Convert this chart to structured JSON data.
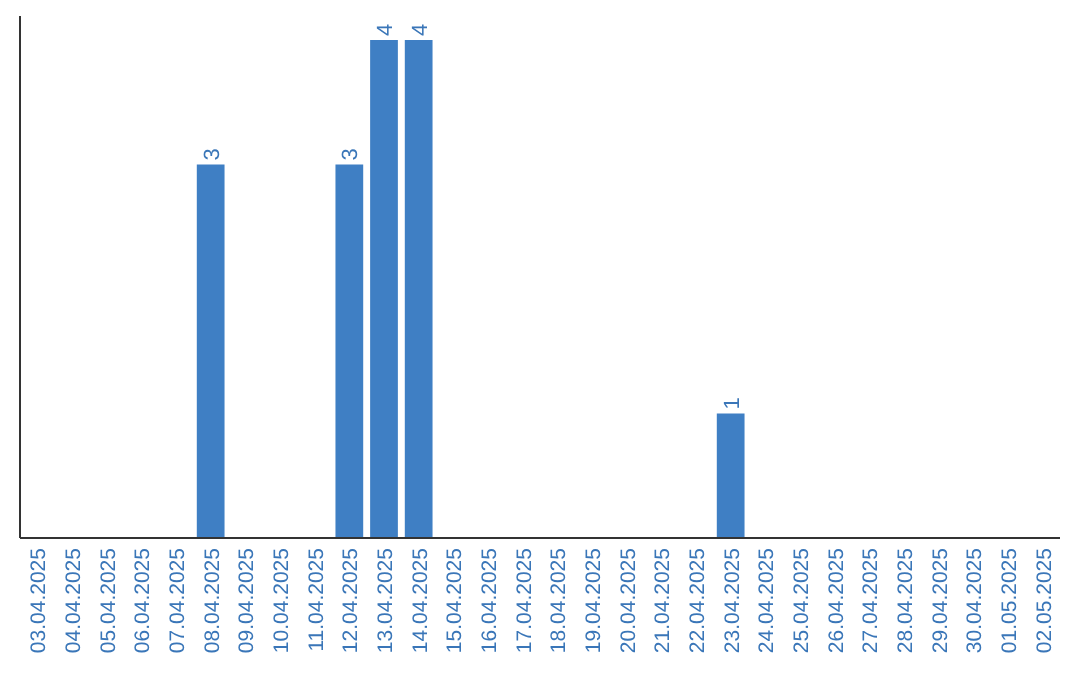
{
  "chart_data": {
    "type": "bar",
    "categories": [
      "03.04.2025",
      "04.04.2025",
      "05.04.2025",
      "06.04.2025",
      "07.04.2025",
      "08.04.2025",
      "09.04.2025",
      "10.04.2025",
      "11.04.2025",
      "12.04.2025",
      "13.04.2025",
      "14.04.2025",
      "15.04.2025",
      "16.04.2025",
      "17.04.2025",
      "18.04.2025",
      "19.04.2025",
      "20.04.2025",
      "21.04.2025",
      "22.04.2025",
      "23.04.2025",
      "24.04.2025",
      "25.04.2025",
      "26.04.2025",
      "27.04.2025",
      "28.04.2025",
      "29.04.2025",
      "30.04.2025",
      "01.05.2025",
      "02.05.2025"
    ],
    "values": [
      0,
      0,
      0,
      0,
      0,
      3,
      0,
      0,
      0,
      3,
      4,
      4,
      0,
      0,
      0,
      0,
      0,
      0,
      0,
      0,
      1,
      0,
      0,
      0,
      0,
      0,
      0,
      0,
      0,
      0
    ],
    "value_labels": [
      null,
      null,
      null,
      null,
      null,
      "3",
      null,
      null,
      null,
      "3",
      "4",
      "4",
      null,
      null,
      null,
      null,
      null,
      null,
      null,
      null,
      "1",
      null,
      null,
      null,
      null,
      null,
      null,
      null,
      null,
      null
    ],
    "color": "#3f7fc4",
    "ylim": [
      0,
      4
    ],
    "tick_labels": "x"
  }
}
